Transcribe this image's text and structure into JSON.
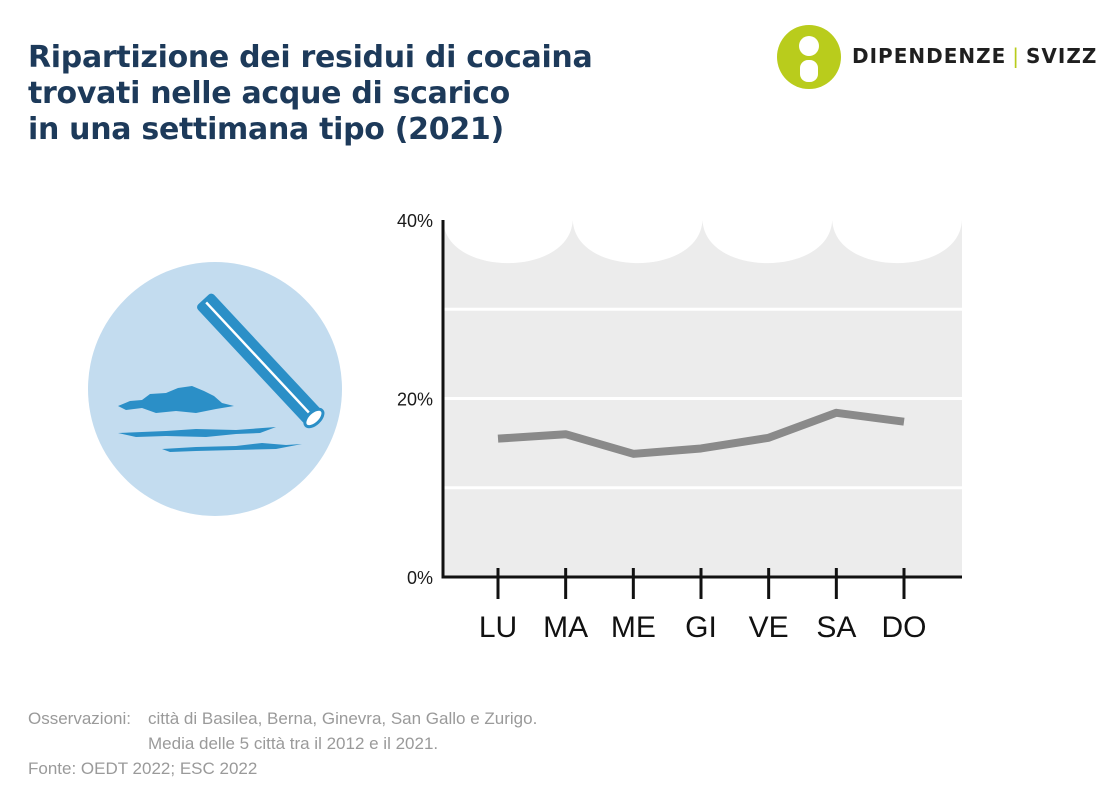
{
  "title": {
    "line1": "Ripartizione dei residui di cocaina",
    "line2": "trovati nelle acque di scarico",
    "line3": "in una settimana tipo (2021)"
  },
  "logo": {
    "part1": "DIPENDENZE",
    "separator": "|",
    "part2": "SVIZZERA",
    "color": "#b9cc1c"
  },
  "notes": {
    "label": "Osservazioni:",
    "line1": "città di Basilea, Berna, Ginevra, San Gallo e Zurigo.",
    "line2": "Media delle 5 città tra il 2012 e il 2021.",
    "source": "Fonte: OEDT 2022; ESC 2022"
  },
  "chart_data": {
    "type": "line",
    "categories": [
      "LU",
      "MA",
      "ME",
      "GI",
      "VE",
      "SA",
      "DO"
    ],
    "series": [
      {
        "values": [
          15.5,
          16.0,
          13.8,
          14.4,
          15.6,
          18.4,
          17.4
        ],
        "color": "#8a8a8a"
      }
    ],
    "ylim": [
      0,
      40
    ],
    "yticks": [
      "0%",
      "20%",
      "40%"
    ],
    "grid": true,
    "background_color": "#ececec",
    "axis_color": "#111111"
  }
}
